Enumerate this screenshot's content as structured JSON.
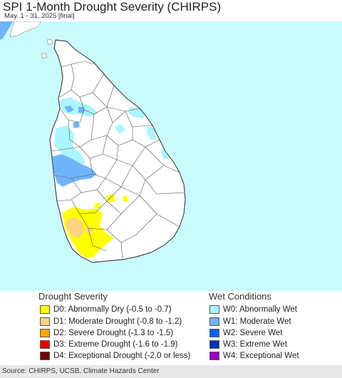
{
  "title": "SPI 1-Month Drought Severity (CHIRPS)",
  "subtitle": "May. 1 - 31, 2025 [final]",
  "colors": {
    "ocean": "#c9fbfd",
    "land": "#ffffff",
    "boundary": "#444444",
    "D0": "#ffff00",
    "D1": "#fcd37f",
    "D2": "#ffaa00",
    "D3": "#e60000",
    "D4": "#730000",
    "W0": "#aaf5ff",
    "W1": "#6eb4ff",
    "W2": "#0064ff",
    "W3": "#0032b4",
    "W4": "#a000c8",
    "india": "#6eb4ff"
  },
  "legend": {
    "drought_heading": "Drought Severity",
    "wet_heading": "Wet Conditions",
    "drought_items": [
      {
        "code": "D0",
        "label": "D0: Abnormally Dry (-0.5 to -0.7)",
        "color": "#ffff00"
      },
      {
        "code": "D1",
        "label": "D1: Moderate Drought (-0.8 to -1.2)",
        "color": "#fcd37f"
      },
      {
        "code": "D2",
        "label": "D2: Severe Drought (-1.3 to -1.5)",
        "color": "#ffaa00"
      },
      {
        "code": "D3",
        "label": "D3: Extreme Drought (-1.6 to -1.9)",
        "color": "#e60000"
      },
      {
        "code": "D4",
        "label": "D4: Exceptional Drought (-2.0 or less)",
        "color": "#730000"
      }
    ],
    "wet_items": [
      {
        "code": "W0",
        "label": "W0: Abnormally Wet",
        "color": "#aaf5ff"
      },
      {
        "code": "W1",
        "label": "W1: Moderate Wet",
        "color": "#6eb4ff"
      },
      {
        "code": "W2",
        "label": "W2: Severe Wet",
        "color": "#0064ff"
      },
      {
        "code": "W3",
        "label": "W3: Extreme Wet",
        "color": "#0032b4"
      },
      {
        "code": "W4",
        "label": "W4: Exceptional Wet",
        "color": "#a000c8"
      }
    ]
  },
  "footer": "Source: CHIRPS, UCSB, Climate Hazards Center"
}
